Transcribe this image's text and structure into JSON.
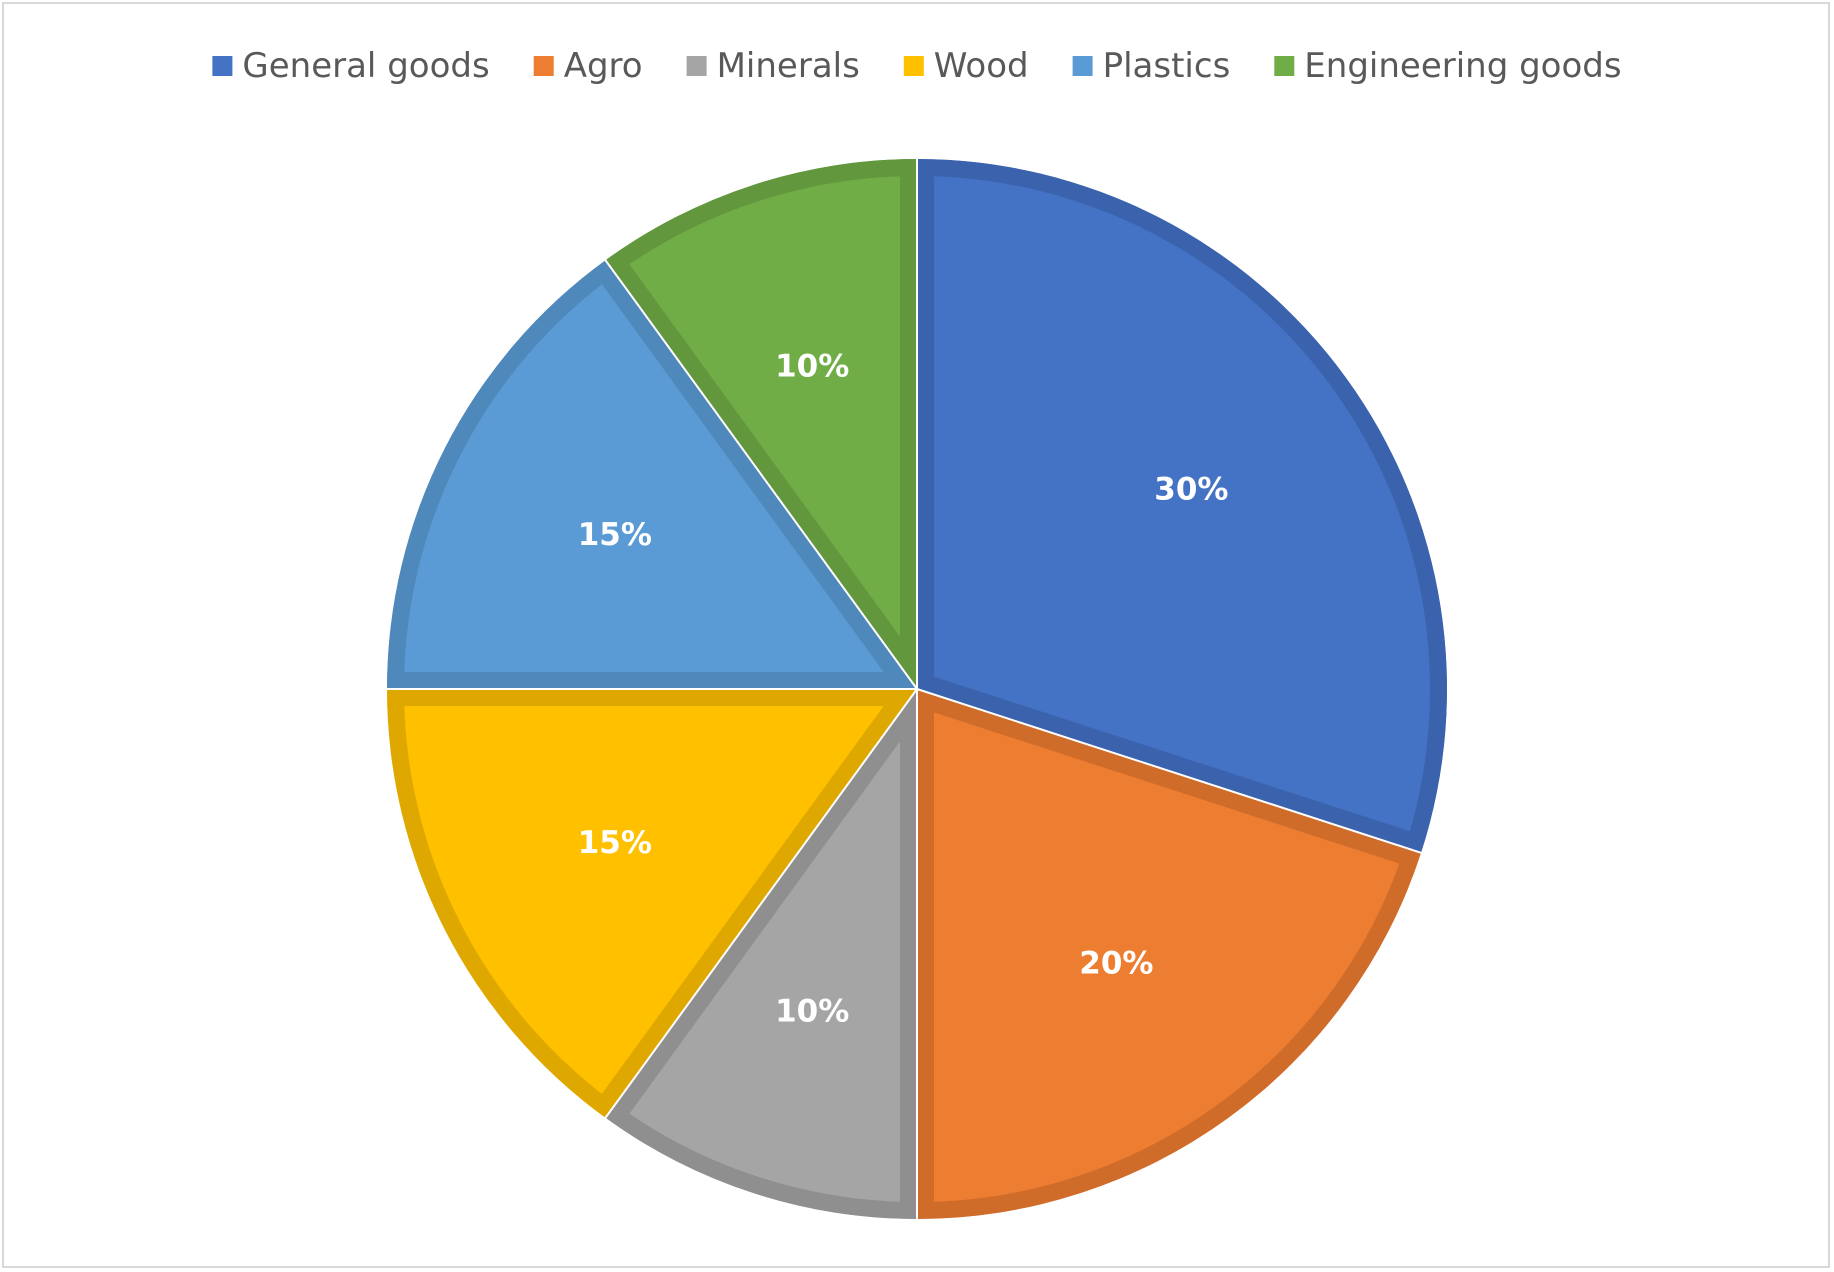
{
  "chart_data": {
    "type": "pie",
    "title": "",
    "legend_position": "top",
    "start_angle_deg": 0,
    "direction": "clockwise",
    "series": [
      {
        "name": "General goods",
        "value": 30,
        "label": "30%",
        "color": "#4472C4",
        "edge": "#3B63AD"
      },
      {
        "name": "Agro",
        "value": 20,
        "label": "20%",
        "color": "#ED7D31",
        "edge": "#D06C2A"
      },
      {
        "name": "Minerals",
        "value": 10,
        "label": "10%",
        "color": "#A5A5A5",
        "edge": "#8F8F8F"
      },
      {
        "name": "Wood",
        "value": 15,
        "label": "15%",
        "color": "#FFC000",
        "edge": "#DFA800"
      },
      {
        "name": "Plastics",
        "value": 15,
        "label": "15%",
        "color": "#5B9BD5",
        "edge": "#4F88BB"
      },
      {
        "name": "Engineering  goods",
        "value": 10,
        "label": "10%",
        "color": "#70AD47",
        "edge": "#62973E"
      }
    ]
  }
}
